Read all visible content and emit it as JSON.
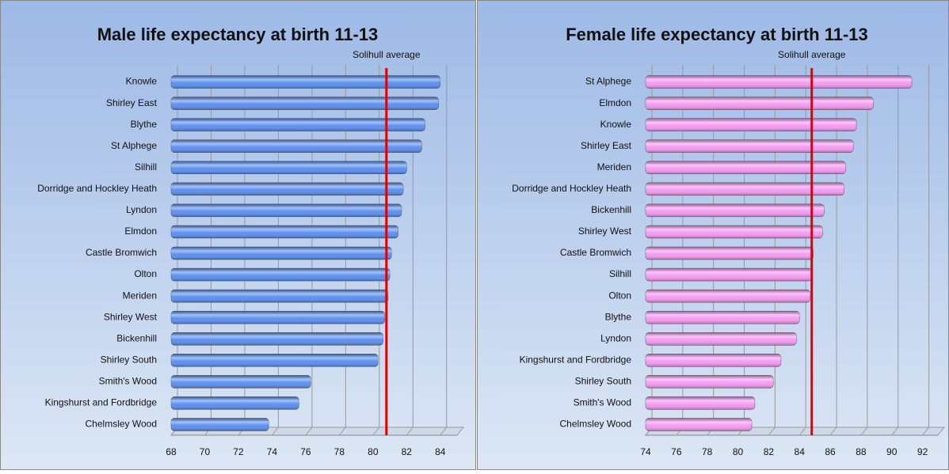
{
  "chart_data": [
    {
      "type": "bar",
      "orientation": "horizontal",
      "title": "Male life expectancy at birth 11-13",
      "categories": [
        "Knowle",
        "Shirley East",
        "Blythe",
        "St Alphege",
        "Silhill",
        "Dorridge and Hockley Heath",
        "Lyndon",
        "Elmdon",
        "Castle Bromwich",
        "Olton",
        "Meriden",
        "Shirley West",
        "Bickenhill",
        "Shirley South",
        "Smith's Wood",
        "Kingshurst and Fordbridge",
        "Chelmsley Wood"
      ],
      "values": [
        84.0,
        83.9,
        83.1,
        82.9,
        82.0,
        81.8,
        81.7,
        81.5,
        81.1,
        81.0,
        80.9,
        80.7,
        80.6,
        80.3,
        76.3,
        75.6,
        73.8
      ],
      "color": "#5b8ff0",
      "average": {
        "value": 80.8,
        "label": "Solihull average"
      },
      "average_color": "#e00000",
      "xlim": [
        68,
        85
      ],
      "xticks": [
        68,
        70,
        72,
        74,
        76,
        78,
        80,
        82,
        84
      ],
      "grid": true
    },
    {
      "type": "bar",
      "orientation": "horizontal",
      "title": "Female life expectancy at birth 11-13",
      "categories": [
        "St Alphege",
        "Elmdon",
        "Knowle",
        "Shirley East",
        "Meriden",
        "Dorridge and Hockley Heath",
        "Bickenhill",
        "Shirley West",
        "Castle Bromwich",
        "Silhill",
        "Olton",
        "Blythe",
        "Lyndon",
        "Kingshurst and Fordbridge",
        "Shirley South",
        "Smith's Wood",
        "Chelmsley Wood"
      ],
      "values": [
        91.3,
        88.8,
        87.7,
        87.5,
        87.0,
        86.9,
        85.6,
        85.5,
        84.9,
        84.8,
        84.7,
        84.0,
        83.8,
        82.8,
        82.3,
        81.1,
        80.9
      ],
      "color": "#f59af2",
      "average": {
        "value": 84.8,
        "label": "Solihull average"
      },
      "average_color": "#e00000",
      "xlim": [
        74,
        93
      ],
      "xticks": [
        74,
        76,
        78,
        80,
        82,
        84,
        86,
        88,
        90,
        92
      ],
      "grid": true
    }
  ]
}
